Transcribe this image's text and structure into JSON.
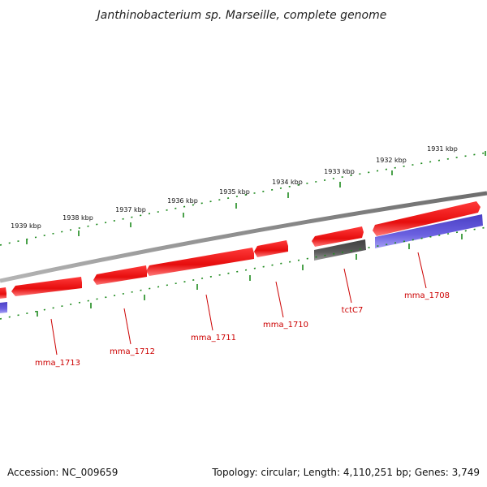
{
  "title": "Janthinobacterium sp. Marseille, complete genome",
  "footer": {
    "accession": "Accession: NC_009659",
    "summary": "Topology: circular; Length: 4,110,251 bp; Genes: 3,749"
  },
  "colors": {
    "forward_gene": "#ee1111",
    "reverse_gene": "#5b50d6",
    "grey_gene": "#555555",
    "backbone": "#8a8a8a",
    "ticks": "#1e8a1e",
    "label": "#cc0000"
  },
  "scale_labels": [
    "1931 kbp",
    "1932 kbp",
    "1933 kbp",
    "1934 kbp",
    "1935 kbp",
    "1936 kbp",
    "1937 kbp",
    "1938 kbp",
    "1939 kbp"
  ],
  "gene_labels": [
    "mma_1708",
    "tctC7",
    "mma_1710",
    "mma_1711",
    "mma_1712",
    "mma_1713"
  ]
}
